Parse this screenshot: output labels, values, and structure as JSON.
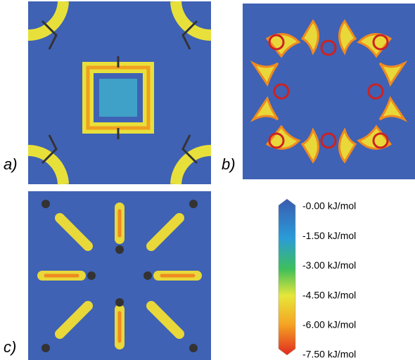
{
  "panels": [
    {
      "label": "a)"
    },
    {
      "label": "b)"
    },
    {
      "label": "c)"
    }
  ],
  "colorbar": {
    "labels": [
      "-0.00 kJ/mol",
      "-1.50 kJ/mol",
      "-3.00 kJ/mol",
      "-4.50 kJ/mol",
      "-6.00 kJ/mol",
      "-7.50 kJ/mol"
    ]
  }
}
